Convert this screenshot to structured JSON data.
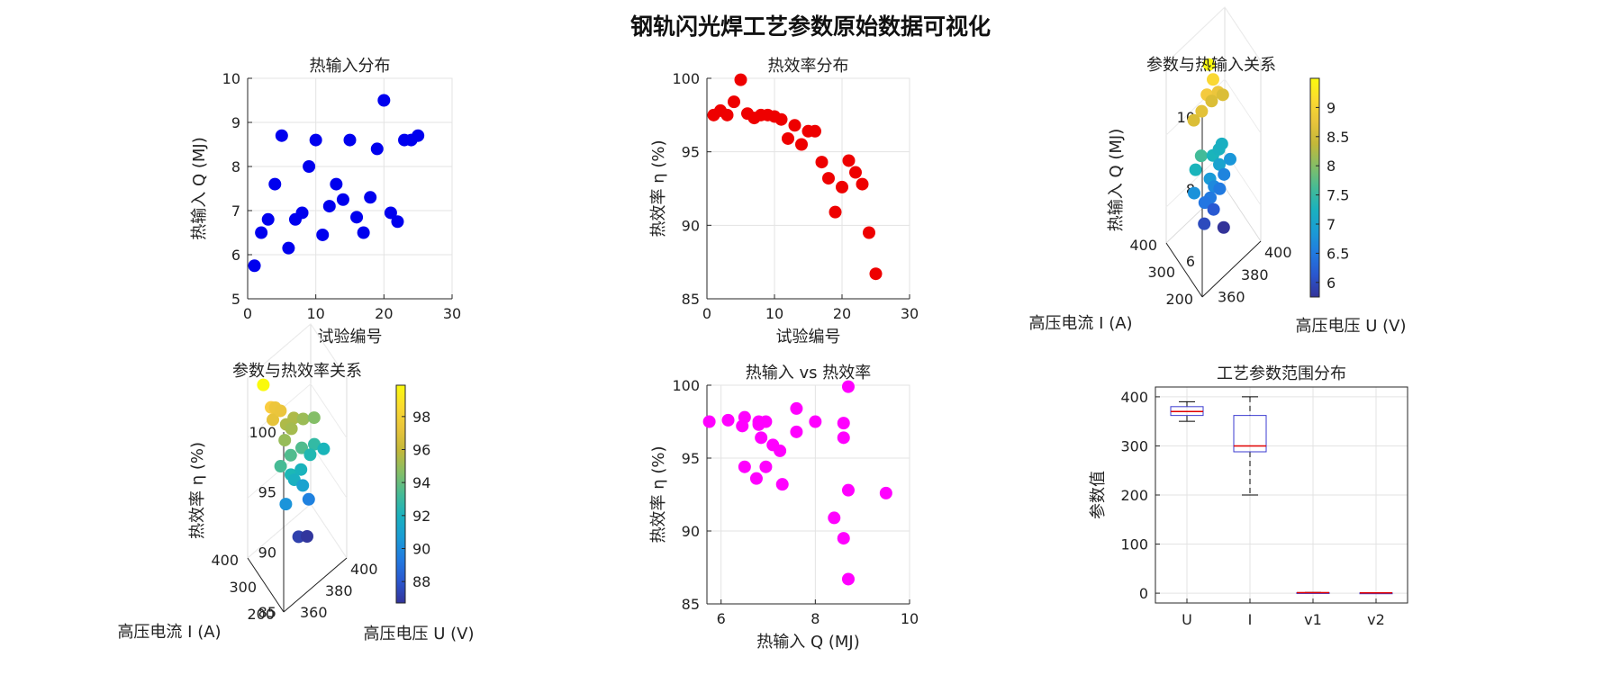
{
  "figure_title": "钢轨闪光焊工艺参数原始数据可视化",
  "chart_data": [
    {
      "id": "p1",
      "type": "scatter",
      "title": "热输入分布",
      "xlabel": "试验编号",
      "ylabel": "热输入 Q (MJ)",
      "xlim": [
        0,
        30
      ],
      "ylim": [
        5,
        10
      ],
      "xticks": [
        0,
        10,
        20,
        30
      ],
      "yticks": [
        5,
        6,
        7,
        8,
        9,
        10
      ],
      "color": "#0000ee",
      "points": [
        [
          1,
          5.75
        ],
        [
          2,
          6.5
        ],
        [
          3,
          6.8
        ],
        [
          4,
          7.6
        ],
        [
          5,
          8.7
        ],
        [
          6,
          6.15
        ],
        [
          7,
          6.8
        ],
        [
          8,
          6.95
        ],
        [
          9,
          8.0
        ],
        [
          10,
          8.6
        ],
        [
          11,
          6.45
        ],
        [
          12,
          7.1
        ],
        [
          13,
          7.6
        ],
        [
          14,
          7.25
        ],
        [
          15,
          8.6
        ],
        [
          16,
          6.85
        ],
        [
          17,
          6.5
        ],
        [
          18,
          7.3
        ],
        [
          19,
          8.4
        ],
        [
          20,
          9.5
        ],
        [
          21,
          6.95
        ],
        [
          22,
          6.75
        ],
        [
          23,
          8.6
        ],
        [
          24,
          8.6
        ],
        [
          25,
          8.7
        ]
      ]
    },
    {
      "id": "p2",
      "type": "scatter",
      "title": "热效率分布",
      "xlabel": "试验编号",
      "ylabel": "热效率 η (%)",
      "xlim": [
        0,
        30
      ],
      "ylim": [
        85,
        100
      ],
      "xticks": [
        0,
        10,
        20,
        30
      ],
      "yticks": [
        85,
        90,
        95,
        100
      ],
      "color": "#ee0000",
      "points": [
        [
          1,
          97.5
        ],
        [
          2,
          97.8
        ],
        [
          3,
          97.5
        ],
        [
          4,
          98.4
        ],
        [
          5,
          99.9
        ],
        [
          6,
          97.6
        ],
        [
          7,
          97.3
        ],
        [
          8,
          97.5
        ],
        [
          9,
          97.5
        ],
        [
          10,
          97.4
        ],
        [
          11,
          97.2
        ],
        [
          12,
          95.9
        ],
        [
          13,
          96.8
        ],
        [
          14,
          95.5
        ],
        [
          15,
          96.4
        ],
        [
          16,
          96.4
        ],
        [
          17,
          94.3
        ],
        [
          18,
          93.2
        ],
        [
          19,
          90.9
        ],
        [
          20,
          92.6
        ],
        [
          21,
          94.4
        ],
        [
          22,
          93.6
        ],
        [
          23,
          92.8
        ],
        [
          24,
          89.5
        ],
        [
          25,
          86.7
        ]
      ]
    },
    {
      "id": "p3",
      "type": "scatter3d",
      "title": "参数与热输入关系",
      "xlabel": "高压电压 U (V)",
      "ylabel": "高压电流 I (A)",
      "zlabel": "热输入 Q (MJ)",
      "zlim": [
        5,
        10
      ],
      "xticks": [
        360,
        380,
        400
      ],
      "yticks": [
        200,
        300,
        400
      ],
      "zticks": [
        6,
        8,
        10
      ],
      "colorbar_ticks": [
        "9",
        "8.5",
        "8",
        "7.5",
        "7",
        "6.5",
        "6"
      ],
      "colorbar_range": [
        5.75,
        9.5
      ],
      "points": [
        {
          "u": 378,
          "i": 345,
          "q": 9.5
        },
        {
          "u": 380,
          "i": 335,
          "q": 9.1
        },
        {
          "u": 374,
          "i": 330,
          "q": 8.9
        },
        {
          "u": 382,
          "i": 320,
          "q": 8.8
        },
        {
          "u": 368,
          "i": 320,
          "q": 8.7
        },
        {
          "u": 362,
          "i": 325,
          "q": 8.6
        },
        {
          "u": 386,
          "i": 320,
          "q": 8.6
        },
        {
          "u": 378,
          "i": 330,
          "q": 8.6
        },
        {
          "u": 366,
          "i": 310,
          "q": 7.6
        },
        {
          "u": 362,
          "i": 315,
          "q": 7.3
        },
        {
          "u": 376,
          "i": 310,
          "q": 7.3
        },
        {
          "u": 382,
          "i": 315,
          "q": 7.25
        },
        {
          "u": 386,
          "i": 325,
          "q": 7.2
        },
        {
          "u": 380,
          "i": 300,
          "q": 7.0
        },
        {
          "u": 372,
          "i": 300,
          "q": 6.85
        },
        {
          "u": 390,
          "i": 305,
          "q": 6.8
        },
        {
          "u": 360,
          "i": 310,
          "q": 6.75
        },
        {
          "u": 374,
          "i": 290,
          "q": 6.65
        },
        {
          "u": 384,
          "i": 300,
          "q": 6.6
        },
        {
          "u": 370,
          "i": 285,
          "q": 6.5
        },
        {
          "u": 366,
          "i": 290,
          "q": 6.45
        },
        {
          "u": 378,
          "i": 285,
          "q": 6.5
        },
        {
          "u": 372,
          "i": 280,
          "q": 6.15
        },
        {
          "u": 364,
          "i": 280,
          "q": 6.0
        },
        {
          "u": 376,
          "i": 250,
          "q": 5.75
        }
      ]
    },
    {
      "id": "p4",
      "type": "scatter3d",
      "title": "参数与热效率关系",
      "xlabel": "高压电压 U (V)",
      "ylabel": "高压电流 I (A)",
      "zlabel": "热效率 η (%)",
      "zlim": [
        85,
        100
      ],
      "xticks": [
        360,
        380,
        400
      ],
      "yticks": [
        200,
        300,
        400
      ],
      "zticks": [
        85,
        90,
        95,
        100
      ],
      "colorbar_ticks": [
        "98",
        "96",
        "94",
        "92",
        "90",
        "88"
      ],
      "colorbar_range": [
        86.7,
        99.9
      ],
      "points": [
        {
          "u": 356,
          "i": 355,
          "e": 99.9
        },
        {
          "u": 360,
          "i": 340,
          "e": 98.0
        },
        {
          "u": 364,
          "i": 345,
          "e": 97.5
        },
        {
          "u": 360,
          "i": 330,
          "e": 97.2
        },
        {
          "u": 366,
          "i": 330,
          "e": 97.4
        },
        {
          "u": 372,
          "i": 340,
          "e": 95.5
        },
        {
          "u": 378,
          "i": 340,
          "e": 95.5
        },
        {
          "u": 368,
          "i": 320,
          "e": 95.0
        },
        {
          "u": 374,
          "i": 325,
          "e": 95.3
        },
        {
          "u": 384,
          "i": 330,
          "e": 95.1
        },
        {
          "u": 392,
          "i": 325,
          "e": 94.6
        },
        {
          "u": 364,
          "i": 315,
          "e": 93.3
        },
        {
          "u": 372,
          "i": 315,
          "e": 93.5
        },
        {
          "u": 380,
          "i": 310,
          "e": 93.5
        },
        {
          "u": 390,
          "i": 310,
          "e": 92.9
        },
        {
          "u": 370,
          "i": 300,
          "e": 92.4
        },
        {
          "u": 378,
          "i": 300,
          "e": 92.1
        },
        {
          "u": 386,
          "i": 305,
          "e": 92.5
        },
        {
          "u": 396,
          "i": 300,
          "e": 92.2
        },
        {
          "u": 372,
          "i": 295,
          "e": 91.9
        },
        {
          "u": 378,
          "i": 290,
          "e": 91.0
        },
        {
          "u": 366,
          "i": 300,
          "e": 90.3
        },
        {
          "u": 382,
          "i": 285,
          "e": 89.6
        },
        {
          "u": 374,
          "i": 285,
          "e": 87.2
        },
        {
          "u": 380,
          "i": 280,
          "e": 86.8
        }
      ]
    },
    {
      "id": "p5",
      "type": "scatter",
      "title": "热输入 vs 热效率",
      "xlabel": "热输入 Q (MJ)",
      "ylabel": "热效率 η (%)",
      "xlim": [
        5.7,
        10
      ],
      "ylim": [
        85,
        100
      ],
      "xticks": [
        6,
        8,
        10
      ],
      "yticks": [
        85,
        90,
        95,
        100
      ],
      "color": "#ff00ff",
      "points": [
        [
          5.75,
          97.5
        ],
        [
          6.15,
          97.6
        ],
        [
          6.45,
          97.2
        ],
        [
          6.5,
          97.8
        ],
        [
          6.5,
          94.4
        ],
        [
          6.75,
          93.6
        ],
        [
          6.8,
          97.3
        ],
        [
          6.85,
          96.4
        ],
        [
          6.8,
          97.5
        ],
        [
          6.95,
          94.4
        ],
        [
          6.95,
          97.5
        ],
        [
          7.1,
          95.9
        ],
        [
          7.25,
          95.5
        ],
        [
          7.3,
          93.2
        ],
        [
          7.6,
          98.4
        ],
        [
          7.6,
          96.8
        ],
        [
          8.0,
          97.5
        ],
        [
          8.4,
          90.9
        ],
        [
          8.6,
          97.4
        ],
        [
          8.6,
          96.4
        ],
        [
          8.6,
          89.5
        ],
        [
          8.7,
          99.9
        ],
        [
          8.7,
          92.8
        ],
        [
          8.7,
          86.7
        ],
        [
          9.5,
          92.6
        ]
      ]
    },
    {
      "id": "p6",
      "type": "boxplot",
      "title": "工艺参数范围分布",
      "xlabel": "",
      "ylabel": "参数值",
      "ylim": [
        -20,
        420
      ],
      "yticks": [
        0,
        100,
        200,
        300,
        400
      ],
      "categories": [
        "U",
        "I",
        "v1",
        "v2"
      ],
      "boxes": [
        {
          "min": 350,
          "q1": 362,
          "median": 370,
          "q3": 380,
          "max": 390
        },
        {
          "min": 200,
          "q1": 288,
          "median": 300,
          "q3": 362,
          "max": 400
        },
        {
          "min": 0.5,
          "q1": 0.8,
          "median": 1.0,
          "q3": 1.2,
          "max": 1.5
        },
        {
          "min": 0.3,
          "q1": 0.5,
          "median": 0.6,
          "q3": 0.7,
          "max": 0.9
        }
      ]
    }
  ]
}
